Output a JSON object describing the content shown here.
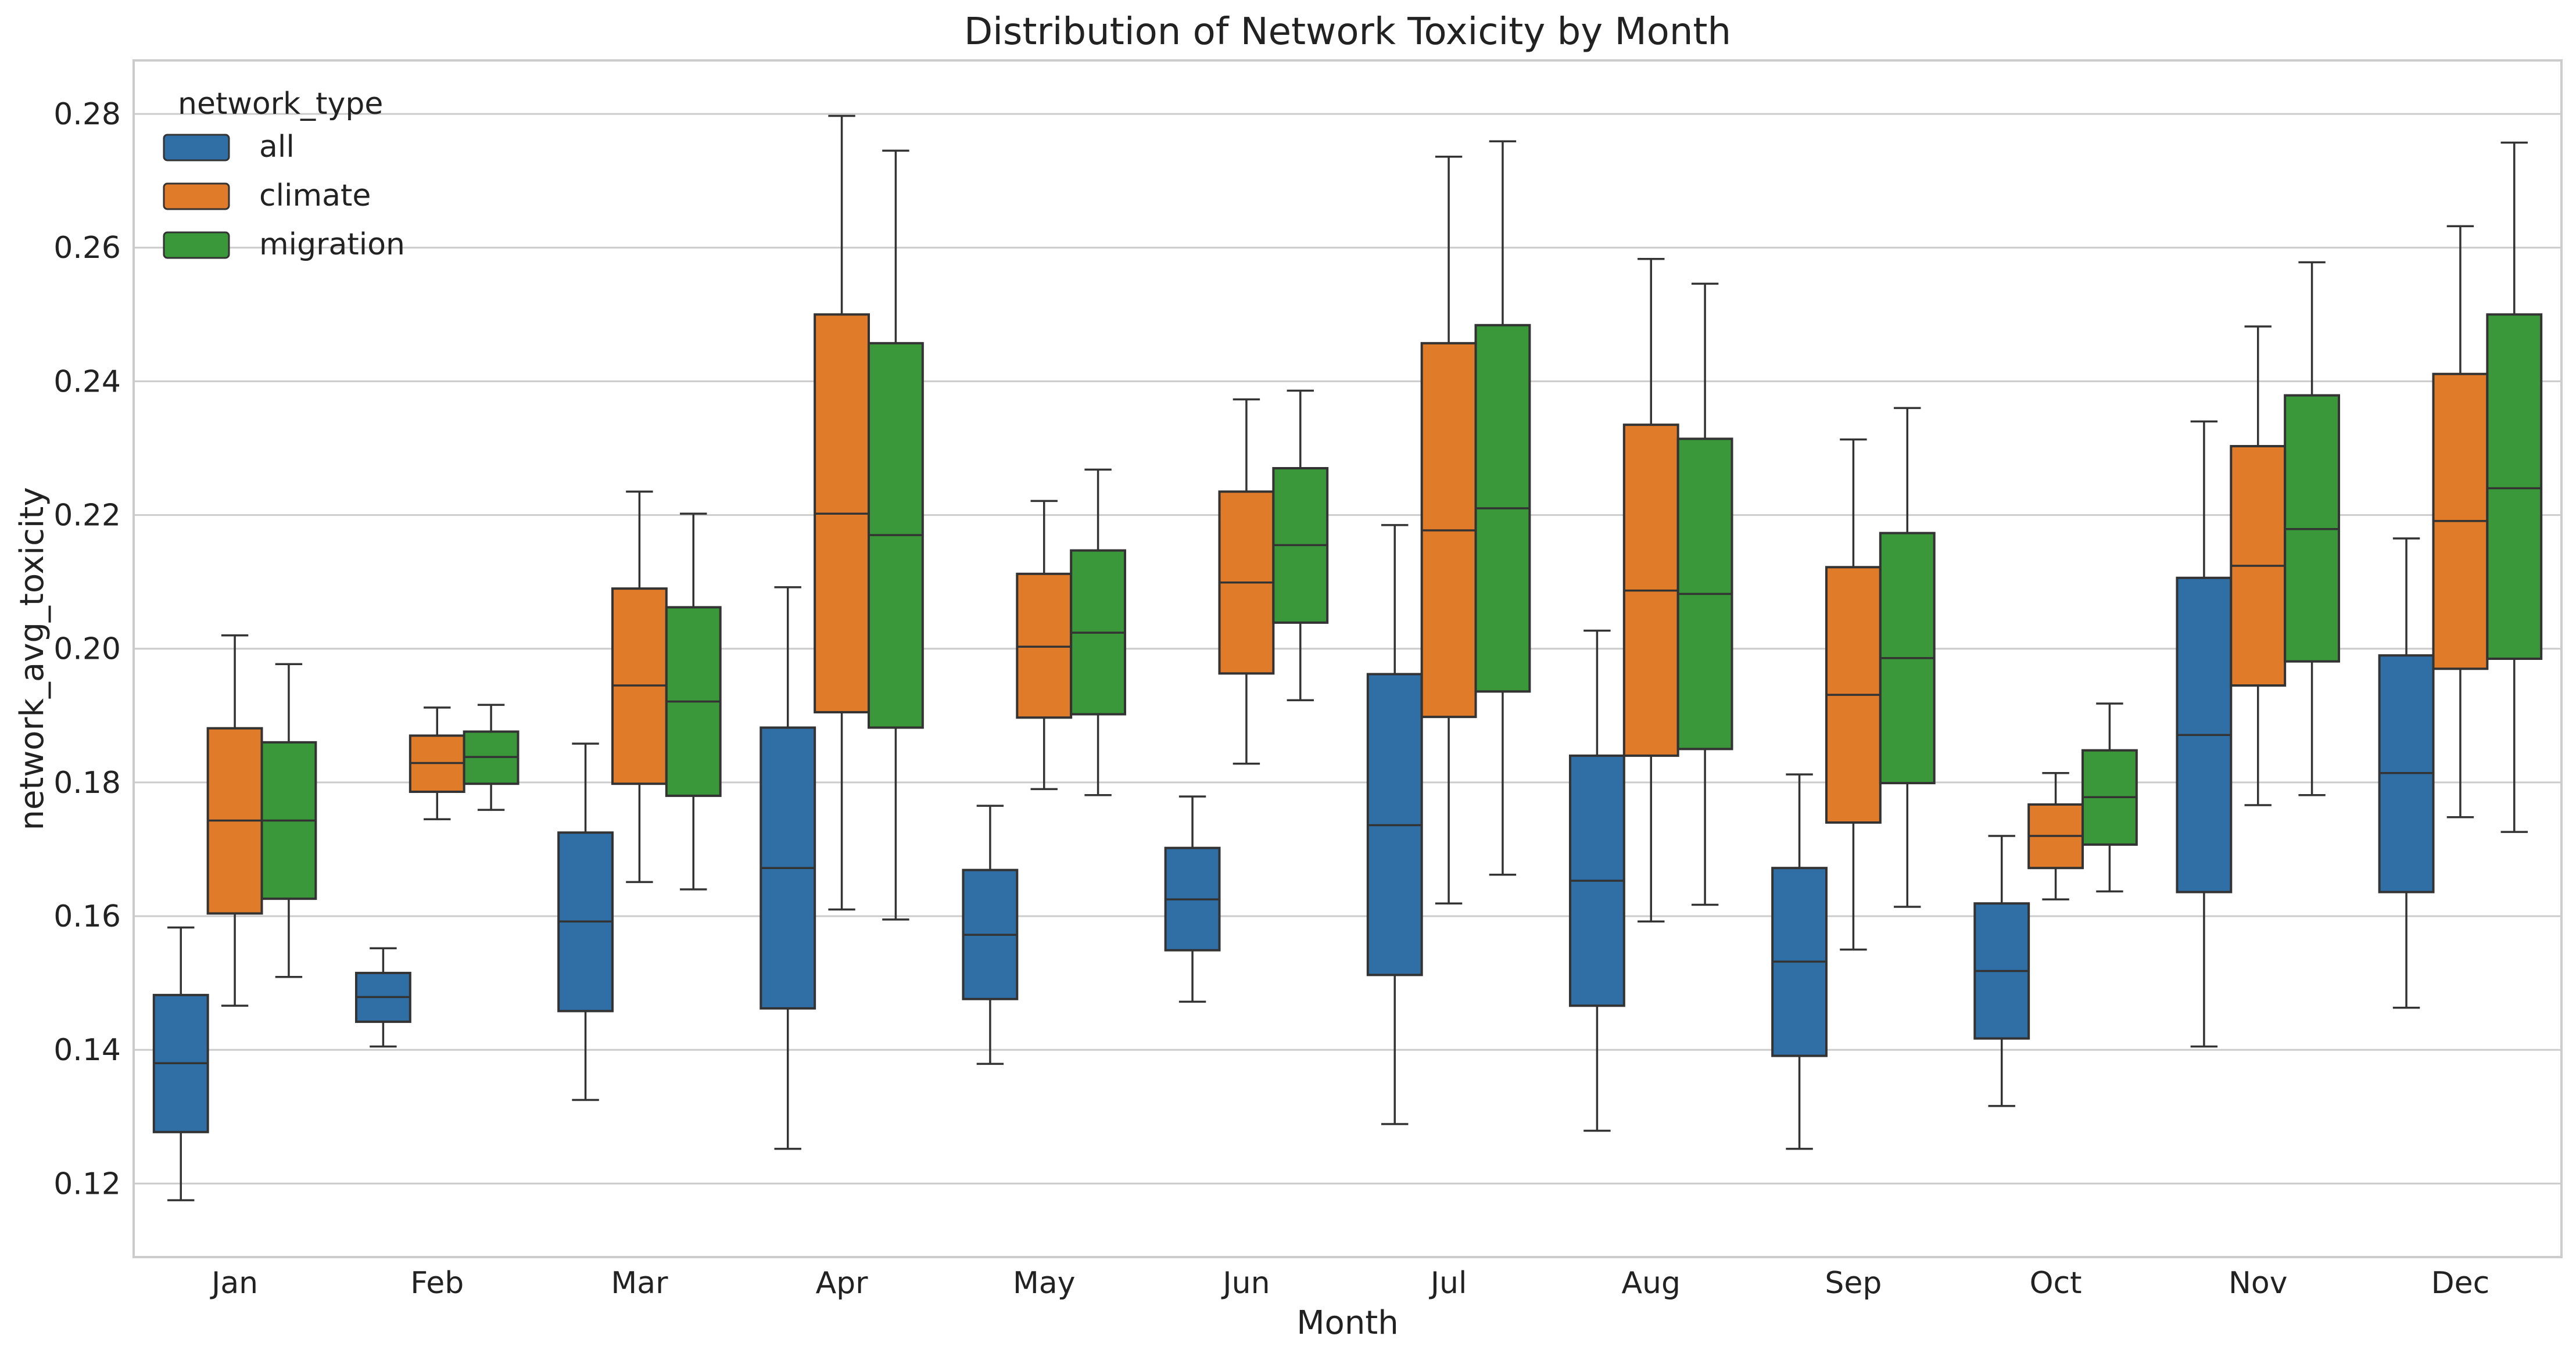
{
  "chart_data": {
    "type": "boxplot",
    "title": "Distribution of Network Toxicity by Month",
    "xlabel": "Month",
    "ylabel": "network_avg_toxicity",
    "ylim": [
      0.109,
      0.288
    ],
    "yticks": [
      0.12,
      0.14,
      0.16,
      0.18,
      0.2,
      0.22,
      0.24,
      0.26,
      0.28
    ],
    "ytick_labels": [
      "0.12",
      "0.14",
      "0.16",
      "0.18",
      "0.20",
      "0.22",
      "0.24",
      "0.26",
      "0.28"
    ],
    "grid": true,
    "legend": {
      "title": "network_type",
      "placement": "top-left"
    },
    "categories": [
      "Jan",
      "Feb",
      "Mar",
      "Apr",
      "May",
      "Jun",
      "Jul",
      "Aug",
      "Sep",
      "Oct",
      "Nov",
      "Dec"
    ],
    "series": [
      {
        "name": "all",
        "color": "#2f6fa6",
        "boxes": [
          {
            "min": 0.1175,
            "q1": 0.1277,
            "median": 0.138,
            "q3": 0.1482,
            "max": 0.1583
          },
          {
            "min": 0.1405,
            "q1": 0.1442,
            "median": 0.1479,
            "q3": 0.1515,
            "max": 0.1552
          },
          {
            "min": 0.1325,
            "q1": 0.1458,
            "median": 0.1592,
            "q3": 0.1725,
            "max": 0.1858
          },
          {
            "min": 0.1252,
            "q1": 0.1462,
            "median": 0.1672,
            "q3": 0.1882,
            "max": 0.2092
          },
          {
            "min": 0.1379,
            "q1": 0.1476,
            "median": 0.1572,
            "q3": 0.1669,
            "max": 0.1765
          },
          {
            "min": 0.1472,
            "q1": 0.1549,
            "median": 0.1625,
            "q3": 0.1702,
            "max": 0.1779
          },
          {
            "min": 0.1289,
            "q1": 0.1512,
            "median": 0.1736,
            "q3": 0.1962,
            "max": 0.2185
          },
          {
            "min": 0.1279,
            "q1": 0.1466,
            "median": 0.1653,
            "q3": 0.184,
            "max": 0.2027
          },
          {
            "min": 0.1252,
            "q1": 0.1391,
            "median": 0.1532,
            "q3": 0.1672,
            "max": 0.1812
          },
          {
            "min": 0.1316,
            "q1": 0.1417,
            "median": 0.1518,
            "q3": 0.1619,
            "max": 0.172
          },
          {
            "min": 0.1405,
            "q1": 0.1636,
            "median": 0.1871,
            "q3": 0.2106,
            "max": 0.234
          },
          {
            "min": 0.1463,
            "q1": 0.1636,
            "median": 0.1814,
            "q3": 0.199,
            "max": 0.2165
          }
        ]
      },
      {
        "name": "climate",
        "color": "#e07b2a",
        "boxes": [
          {
            "min": 0.1466,
            "q1": 0.1604,
            "median": 0.1743,
            "q3": 0.1881,
            "max": 0.202
          },
          {
            "min": 0.1745,
            "q1": 0.1786,
            "median": 0.1829,
            "q3": 0.187,
            "max": 0.1912
          },
          {
            "min": 0.1651,
            "q1": 0.1798,
            "median": 0.1945,
            "q3": 0.209,
            "max": 0.2235
          },
          {
            "min": 0.161,
            "q1": 0.1905,
            "median": 0.2202,
            "q3": 0.25,
            "max": 0.2797
          },
          {
            "min": 0.179,
            "q1": 0.1897,
            "median": 0.2003,
            "q3": 0.2112,
            "max": 0.2221
          },
          {
            "min": 0.1828,
            "q1": 0.1963,
            "median": 0.2099,
            "q3": 0.2235,
            "max": 0.2373
          },
          {
            "min": 0.1619,
            "q1": 0.1898,
            "median": 0.2177,
            "q3": 0.2457,
            "max": 0.2736
          },
          {
            "min": 0.1592,
            "q1": 0.184,
            "median": 0.2087,
            "q3": 0.2335,
            "max": 0.2583
          },
          {
            "min": 0.155,
            "q1": 0.174,
            "median": 0.1931,
            "q3": 0.2122,
            "max": 0.2313
          },
          {
            "min": 0.1625,
            "q1": 0.1672,
            "median": 0.172,
            "q3": 0.1767,
            "max": 0.1814
          },
          {
            "min": 0.1766,
            "q1": 0.1945,
            "median": 0.2124,
            "q3": 0.2303,
            "max": 0.2482
          },
          {
            "min": 0.1748,
            "q1": 0.197,
            "median": 0.2191,
            "q3": 0.2411,
            "max": 0.2632
          }
        ]
      },
      {
        "name": "migration",
        "color": "#3a983a",
        "boxes": [
          {
            "min": 0.1509,
            "q1": 0.1626,
            "median": 0.1743,
            "q3": 0.186,
            "max": 0.1977
          },
          {
            "min": 0.1759,
            "q1": 0.1798,
            "median": 0.1838,
            "q3": 0.1876,
            "max": 0.1916
          },
          {
            "min": 0.164,
            "q1": 0.178,
            "median": 0.1921,
            "q3": 0.2062,
            "max": 0.2202
          },
          {
            "min": 0.1595,
            "q1": 0.1882,
            "median": 0.217,
            "q3": 0.2457,
            "max": 0.2745
          },
          {
            "min": 0.1781,
            "q1": 0.1902,
            "median": 0.2024,
            "q3": 0.2147,
            "max": 0.2268
          },
          {
            "min": 0.1923,
            "q1": 0.2039,
            "median": 0.2155,
            "q3": 0.227,
            "max": 0.2386
          },
          {
            "min": 0.1662,
            "q1": 0.1936,
            "median": 0.221,
            "q3": 0.2484,
            "max": 0.2759
          },
          {
            "min": 0.1617,
            "q1": 0.185,
            "median": 0.2082,
            "q3": 0.2314,
            "max": 0.2546
          },
          {
            "min": 0.1614,
            "q1": 0.1799,
            "median": 0.1986,
            "q3": 0.2173,
            "max": 0.236
          },
          {
            "min": 0.1637,
            "q1": 0.1707,
            "median": 0.1778,
            "q3": 0.1848,
            "max": 0.1918
          },
          {
            "min": 0.1781,
            "q1": 0.1981,
            "median": 0.2179,
            "q3": 0.2379,
            "max": 0.2578
          },
          {
            "min": 0.1726,
            "q1": 0.1985,
            "median": 0.224,
            "q3": 0.25,
            "max": 0.2757
          }
        ]
      }
    ]
  }
}
